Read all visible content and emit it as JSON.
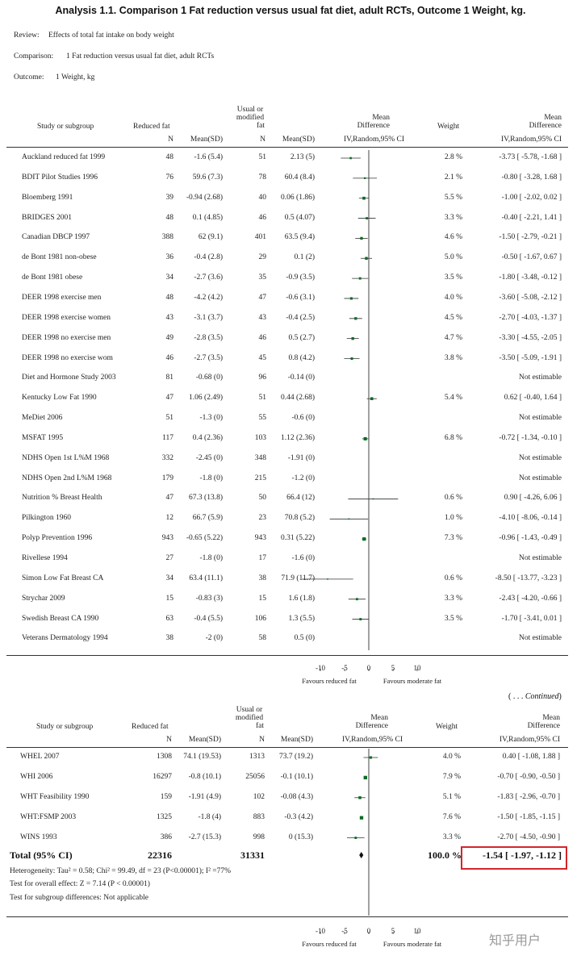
{
  "title": "Analysis 1.1.   Comparison 1 Fat reduction versus usual fat diet, adult RCTs, Outcome 1 Weight, kg.",
  "meta": {
    "review_label": "Review:",
    "review_value": "Effects of total fat intake on body weight",
    "comparison_label": "Comparison:",
    "comparison_value": "1 Fat reduction versus usual fat diet, adult RCTs",
    "outcome_label": "Outcome:",
    "outcome_value": "1 Weight, kg"
  },
  "headers": {
    "study": "Study or subgroup",
    "group1": "Reduced fat",
    "group2_l1": "Usual or",
    "group2_l2": "modified",
    "group2_l3": "fat",
    "n": "N",
    "meansd": "Mean(SD)",
    "md_l1": "Mean",
    "md_l2": "Difference",
    "md_l3": "IV,Random,95% CI",
    "weight": "Weight",
    "md2_l1": "Mean",
    "md2_l2": "Difference",
    "md2_l3": "IV,Random,95% CI"
  },
  "chart_data": {
    "type": "forest",
    "measure": "Mean Difference IV,Random,95% CI",
    "xlim": [
      -10,
      10
    ],
    "ticks": [
      "-10",
      "-5",
      "0",
      "5",
      "10"
    ],
    "tick_values": [
      -10,
      -5,
      0,
      5,
      10
    ],
    "favours_left": "Favours reduced fat",
    "favours_right": "Favours moderate fat",
    "studies_part1": [
      {
        "name": "Auckland reduced fat 1999",
        "n1": "48",
        "ms1": "-1.6 (5.4)",
        "n2": "51",
        "ms2": "2.13 (5)",
        "weight": "2.8 %",
        "ci_text": "-3.73 [ -5.78, -1.68 ]",
        "md": -3.73,
        "lo": -5.78,
        "hi": -1.68,
        "w": 2.8
      },
      {
        "name": "BDIT Pilot Studies 1996",
        "n1": "76",
        "ms1": "59.6 (7.3)",
        "n2": "78",
        "ms2": "60.4 (8.4)",
        "weight": "2.1 %",
        "ci_text": "-0.80 [ -3.28, 1.68 ]",
        "md": -0.8,
        "lo": -3.28,
        "hi": 1.68,
        "w": 2.1
      },
      {
        "name": "Bloemberg 1991",
        "n1": "39",
        "ms1": "-0.94 (2.68)",
        "n2": "40",
        "ms2": "0.06 (1.86)",
        "weight": "5.5 %",
        "ci_text": "-1.00 [ -2.02, 0.02 ]",
        "md": -1.0,
        "lo": -2.02,
        "hi": 0.02,
        "w": 5.5
      },
      {
        "name": "BRIDGES 2001",
        "n1": "48",
        "ms1": "0.1 (4.85)",
        "n2": "46",
        "ms2": "0.5 (4.07)",
        "weight": "3.3 %",
        "ci_text": "-0.40 [ -2.21, 1.41 ]",
        "md": -0.4,
        "lo": -2.21,
        "hi": 1.41,
        "w": 3.3
      },
      {
        "name": "Canadian DBCP 1997",
        "n1": "388",
        "ms1": "62 (9.1)",
        "n2": "401",
        "ms2": "63.5 (9.4)",
        "weight": "4.6 %",
        "ci_text": "-1.50 [ -2.79, -0.21 ]",
        "md": -1.5,
        "lo": -2.79,
        "hi": -0.21,
        "w": 4.6
      },
      {
        "name": "de Bont 1981 non-obese",
        "n1": "36",
        "ms1": "-0.4 (2.8)",
        "n2": "29",
        "ms2": "0.1 (2)",
        "weight": "5.0 %",
        "ci_text": "-0.50 [ -1.67, 0.67 ]",
        "md": -0.5,
        "lo": -1.67,
        "hi": 0.67,
        "w": 5.0
      },
      {
        "name": "de Bont 1981 obese",
        "n1": "34",
        "ms1": "-2.7 (3.6)",
        "n2": "35",
        "ms2": "-0.9 (3.5)",
        "weight": "3.5 %",
        "ci_text": "-1.80 [ -3.48, -0.12 ]",
        "md": -1.8,
        "lo": -3.48,
        "hi": -0.12,
        "w": 3.5
      },
      {
        "name": "DEER 1998 exercise men",
        "n1": "48",
        "ms1": "-4.2 (4.2)",
        "n2": "47",
        "ms2": "-0.6 (3.1)",
        "weight": "4.0 %",
        "ci_text": "-3.60 [ -5.08, -2.12 ]",
        "md": -3.6,
        "lo": -5.08,
        "hi": -2.12,
        "w": 4.0
      },
      {
        "name": "DEER 1998 exercise women",
        "n1": "43",
        "ms1": "-3.1 (3.7)",
        "n2": "43",
        "ms2": "-0.4 (2.5)",
        "weight": "4.5 %",
        "ci_text": "-2.70 [ -4.03, -1.37 ]",
        "md": -2.7,
        "lo": -4.03,
        "hi": -1.37,
        "w": 4.5
      },
      {
        "name": "DEER 1998 no exercise men",
        "n1": "49",
        "ms1": "-2.8 (3.5)",
        "n2": "46",
        "ms2": "0.5 (2.7)",
        "weight": "4.7 %",
        "ci_text": "-3.30 [ -4.55, -2.05 ]",
        "md": -3.3,
        "lo": -4.55,
        "hi": -2.05,
        "w": 4.7
      },
      {
        "name": "DEER 1998 no exercise wom",
        "n1": "46",
        "ms1": "-2.7 (3.5)",
        "n2": "45",
        "ms2": "0.8 (4.2)",
        "weight": "3.8 %",
        "ci_text": "-3.50 [ -5.09, -1.91 ]",
        "md": -3.5,
        "lo": -5.09,
        "hi": -1.91,
        "w": 3.8
      },
      {
        "name": "Diet and Hormone Study 2003",
        "n1": "81",
        "ms1": "-0.68 (0)",
        "n2": "96",
        "ms2": "-0.14 (0)",
        "weight": "",
        "ci_text": "Not estimable",
        "md": null,
        "lo": null,
        "hi": null,
        "w": null
      },
      {
        "name": "Kentucky Low Fat 1990",
        "n1": "47",
        "ms1": "1.06 (2.49)",
        "n2": "51",
        "ms2": "0.44 (2.68)",
        "weight": "5.4 %",
        "ci_text": "0.62 [ -0.40, 1.64 ]",
        "md": 0.62,
        "lo": -0.4,
        "hi": 1.64,
        "w": 5.4
      },
      {
        "name": "MeDiet 2006",
        "n1": "51",
        "ms1": "-1.3 (0)",
        "n2": "55",
        "ms2": "-0.6 (0)",
        "weight": "",
        "ci_text": "Not estimable",
        "md": null,
        "lo": null,
        "hi": null,
        "w": null
      },
      {
        "name": "MSFAT 1995",
        "n1": "117",
        "ms1": "0.4 (2.36)",
        "n2": "103",
        "ms2": "1.12 (2.36)",
        "weight": "6.8 %",
        "ci_text": "-0.72 [ -1.34, -0.10 ]",
        "md": -0.72,
        "lo": -1.34,
        "hi": -0.1,
        "w": 6.8
      },
      {
        "name": "NDHS Open 1st L%M 1968",
        "n1": "332",
        "ms1": "-2.45 (0)",
        "n2": "348",
        "ms2": "-1.91 (0)",
        "weight": "",
        "ci_text": "Not estimable",
        "md": null,
        "lo": null,
        "hi": null,
        "w": null
      },
      {
        "name": "NDHS Open 2nd L%M 1968",
        "n1": "179",
        "ms1": "-1.8 (0)",
        "n2": "215",
        "ms2": "-1.2 (0)",
        "weight": "",
        "ci_text": "Not estimable",
        "md": null,
        "lo": null,
        "hi": null,
        "w": null
      },
      {
        "name": "Nutrition % Breast Health",
        "n1": "47",
        "ms1": "67.3 (13.8)",
        "n2": "50",
        "ms2": "66.4 (12)",
        "weight": "0.6 %",
        "ci_text": "0.90 [ -4.26, 6.06 ]",
        "md": 0.9,
        "lo": -4.26,
        "hi": 6.06,
        "w": 0.6
      },
      {
        "name": "Pilkington 1960",
        "n1": "12",
        "ms1": "66.7 (5.9)",
        "n2": "23",
        "ms2": "70.8 (5.2)",
        "weight": "1.0 %",
        "ci_text": "-4.10 [ -8.06, -0.14 ]",
        "md": -4.1,
        "lo": -8.06,
        "hi": -0.14,
        "w": 1.0
      },
      {
        "name": "Polyp Prevention 1996",
        "n1": "943",
        "ms1": "-0.65 (5.22)",
        "n2": "943",
        "ms2": "0.31 (5.22)",
        "weight": "7.3 %",
        "ci_text": "-0.96 [ -1.43, -0.49 ]",
        "md": -0.96,
        "lo": -1.43,
        "hi": -0.49,
        "w": 7.3
      },
      {
        "name": "Rivellese 1994",
        "n1": "27",
        "ms1": "-1.8 (0)",
        "n2": "17",
        "ms2": "-1.6 (0)",
        "weight": "",
        "ci_text": "Not estimable",
        "md": null,
        "lo": null,
        "hi": null,
        "w": null
      },
      {
        "name": "Simon Low Fat Breast CA",
        "n1": "34",
        "ms1": "63.4 (11.1)",
        "n2": "38",
        "ms2": "71.9 (11.7)",
        "weight": "0.6 %",
        "ci_text": "-8.50 [ -13.77, -3.23 ]",
        "md": -8.5,
        "lo": -13.77,
        "hi": -3.23,
        "w": 0.6
      },
      {
        "name": "Strychar 2009",
        "n1": "15",
        "ms1": "-0.83 (3)",
        "n2": "15",
        "ms2": "1.6 (1.8)",
        "weight": "3.3 %",
        "ci_text": "-2.43 [ -4.20, -0.66 ]",
        "md": -2.43,
        "lo": -4.2,
        "hi": -0.66,
        "w": 3.3
      },
      {
        "name": "Swedish Breast CA 1990",
        "n1": "63",
        "ms1": "-0.4 (5.5)",
        "n2": "106",
        "ms2": "1.3 (5.5)",
        "weight": "3.5 %",
        "ci_text": "-1.70 [ -3.41, 0.01 ]",
        "md": -1.7,
        "lo": -3.41,
        "hi": 0.01,
        "w": 3.5
      },
      {
        "name": "Veterans Dermatology 1994",
        "n1": "38",
        "ms1": "-2 (0)",
        "n2": "58",
        "ms2": "0.5 (0)",
        "weight": "",
        "ci_text": "Not estimable",
        "md": null,
        "lo": null,
        "hi": null,
        "w": null
      }
    ],
    "studies_part2": [
      {
        "name": "WHEL 2007",
        "n1": "1308",
        "ms1": "74.1 (19.53)",
        "n2": "1313",
        "ms2": "73.7 (19.2)",
        "weight": "4.0 %",
        "ci_text": "0.40 [ -1.08, 1.88 ]",
        "md": 0.4,
        "lo": -1.08,
        "hi": 1.88,
        "w": 4.0
      },
      {
        "name": "WHI 2006",
        "n1": "16297",
        "ms1": "-0.8 (10.1)",
        "n2": "25056",
        "ms2": "-0.1 (10.1)",
        "weight": "7.9 %",
        "ci_text": "-0.70 [ -0.90, -0.50 ]",
        "md": -0.7,
        "lo": -0.9,
        "hi": -0.5,
        "w": 7.9
      },
      {
        "name": "WHT Feasibility 1990",
        "n1": "159",
        "ms1": "-1.91 (4.9)",
        "n2": "102",
        "ms2": "-0.08 (4.3)",
        "weight": "5.1 %",
        "ci_text": "-1.83 [ -2.96, -0.70 ]",
        "md": -1.83,
        "lo": -2.96,
        "hi": -0.7,
        "w": 5.1
      },
      {
        "name": "WHT:FSMP 2003",
        "n1": "1325",
        "ms1": "-1.8 (4)",
        "n2": "883",
        "ms2": "-0.3 (4.2)",
        "weight": "7.6 %",
        "ci_text": "-1.50 [ -1.85, -1.15 ]",
        "md": -1.5,
        "lo": -1.85,
        "hi": -1.15,
        "w": 7.6
      },
      {
        "name": "WINS 1993",
        "n1": "386",
        "ms1": "-2.7 (15.3)",
        "n2": "998",
        "ms2": "0 (15.3)",
        "weight": "3.3 %",
        "ci_text": "-2.70 [ -4.50, -0.90 ]",
        "md": -2.7,
        "lo": -4.5,
        "hi": -0.9,
        "w": 3.3
      }
    ],
    "total": {
      "label": "Total (95% CI)",
      "n1": "22316",
      "n2": "31331",
      "weight": "100.0 %",
      "ci_text": "-1.54 [ -1.97, -1.12 ]",
      "md": -1.54,
      "lo": -1.97,
      "hi": -1.12
    }
  },
  "continued": {
    "dots": "( . . . ",
    "word": "Continued",
    "close": ")"
  },
  "footnotes": {
    "heterogeneity": "Heterogeneity: Tau² = 0.58; Chi² = 99.49, df = 23 (P<0.00001); I² =77%",
    "overall": "Test for overall effect: Z = 7.14 (P < 0.00001)",
    "subgroup": "Test for subgroup differences: Not applicable"
  },
  "colors": {
    "marker": "#0b6b25",
    "highlight": "#d3262a"
  },
  "watermark": "知乎用户"
}
